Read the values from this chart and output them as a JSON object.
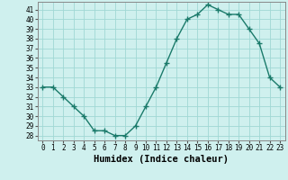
{
  "x": [
    0,
    1,
    2,
    3,
    4,
    5,
    6,
    7,
    8,
    9,
    10,
    11,
    12,
    13,
    14,
    15,
    16,
    17,
    18,
    19,
    20,
    21,
    22,
    23
  ],
  "y": [
    33,
    33,
    32,
    31,
    30,
    28.5,
    28.5,
    28,
    28,
    29,
    31,
    33,
    35.5,
    38,
    40,
    40.5,
    41.5,
    41,
    40.5,
    40.5,
    39,
    37.5,
    34,
    33
  ],
  "line_color": "#1a7a6a",
  "marker": "+",
  "marker_size": 4,
  "marker_lw": 1.0,
  "bg_color": "#cff0ee",
  "grid_color": "#a0d8d4",
  "xlabel": "Humidex (Indice chaleur)",
  "ylim": [
    27.5,
    41.8
  ],
  "yticks": [
    28,
    29,
    30,
    31,
    32,
    33,
    34,
    35,
    36,
    37,
    38,
    39,
    40,
    41
  ],
  "xticks": [
    0,
    1,
    2,
    3,
    4,
    5,
    6,
    7,
    8,
    9,
    10,
    11,
    12,
    13,
    14,
    15,
    16,
    17,
    18,
    19,
    20,
    21,
    22,
    23
  ],
  "tick_fontsize": 5.5,
  "xlabel_fontsize": 7.5,
  "line_width": 1.0
}
